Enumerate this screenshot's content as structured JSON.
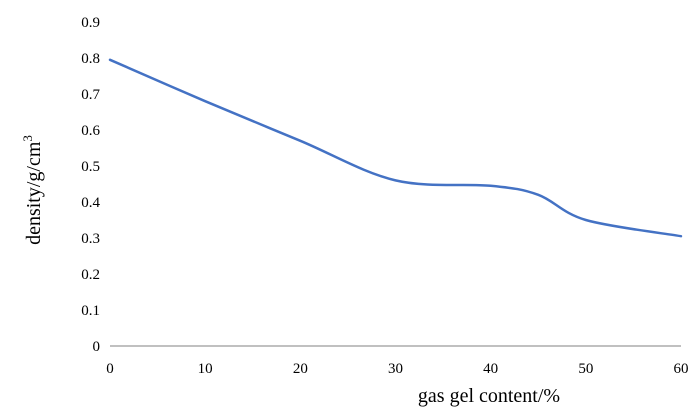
{
  "chart_data": {
    "type": "line",
    "title": "",
    "xlabel": "gas gel content/%",
    "ylabel_main": "density/g/cm",
    "ylabel_sup": "3",
    "xlim": [
      0,
      60
    ],
    "ylim": [
      0,
      0.9
    ],
    "x_ticks": [
      "0",
      "10",
      "20",
      "30",
      "40",
      "50",
      "60"
    ],
    "y_ticks": [
      "0",
      "0.1",
      "0.2",
      "0.3",
      "0.4",
      "0.5",
      "0.6",
      "0.7",
      "0.8",
      "0.9"
    ],
    "grid": false,
    "legend": "none",
    "series": [
      {
        "color": "#4472c4",
        "x": [
          0,
          10,
          20,
          30,
          40,
          45,
          50,
          60
        ],
        "y": [
          0.795,
          0.68,
          0.57,
          0.46,
          0.445,
          0.42,
          0.35,
          0.305
        ]
      }
    ]
  }
}
